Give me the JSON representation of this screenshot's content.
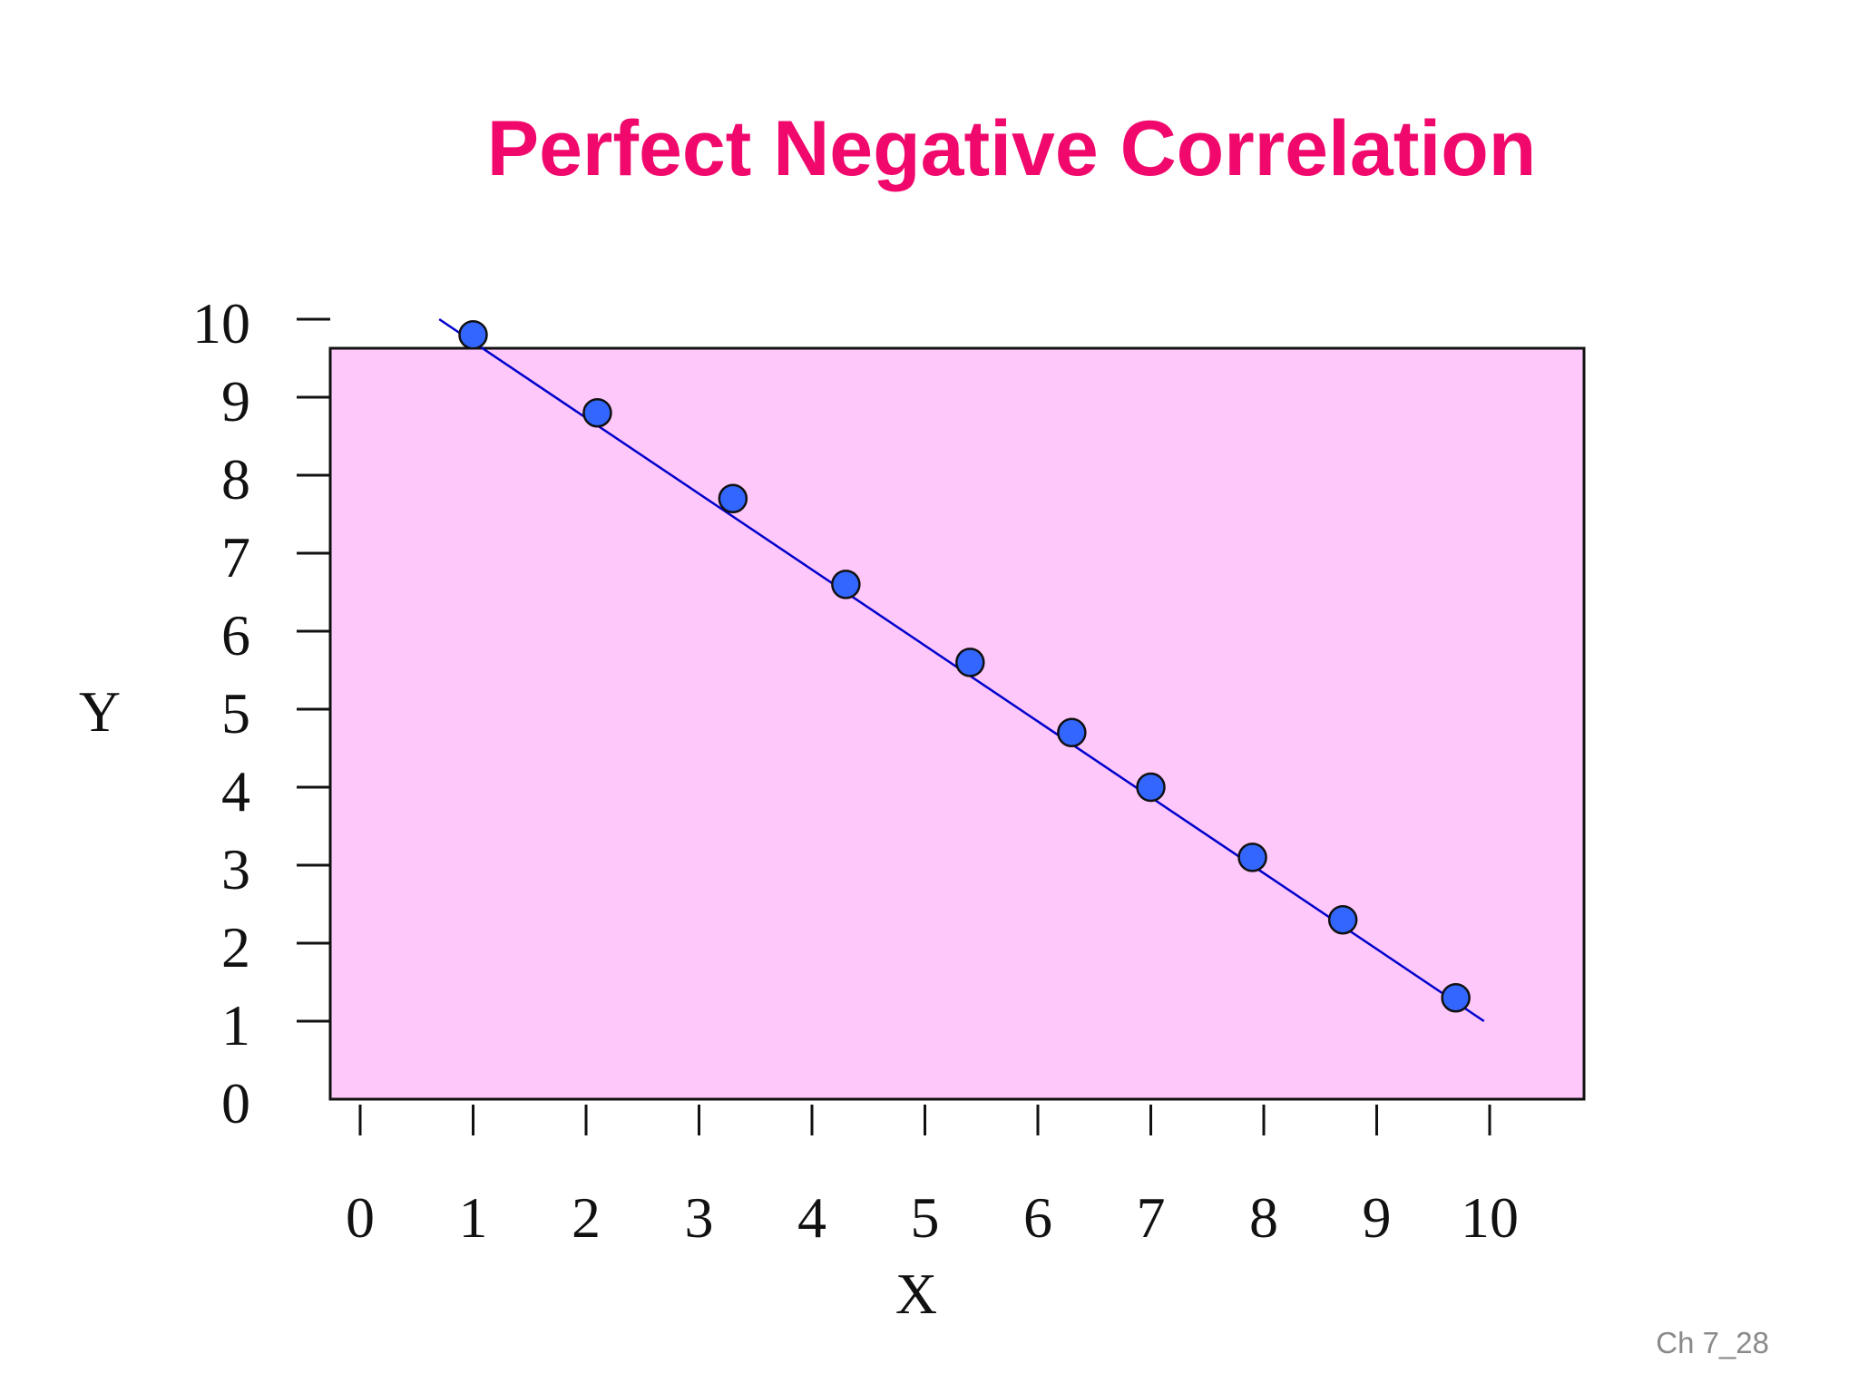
{
  "slide": {
    "title": "Perfect Negative Correlation",
    "slide_number": "Ch 7_28"
  },
  "colors": {
    "title": "#f0086c",
    "plot_background": "#ffc8fa",
    "line": "#0000cc",
    "marker_fill": "#3366ff",
    "marker_stroke": "#111111"
  },
  "chart_data": {
    "type": "scatter",
    "title": "Perfect Negative Correlation",
    "xlabel": "X",
    "ylabel": "Y",
    "xlim": [
      0,
      10
    ],
    "ylim": [
      0,
      10
    ],
    "x_ticks": [
      {
        "value": 0,
        "label": "0"
      },
      {
        "value": 1,
        "label": "1"
      },
      {
        "value": 2,
        "label": "2"
      },
      {
        "value": 3,
        "label": "3"
      },
      {
        "value": 4,
        "label": "4"
      },
      {
        "value": 5,
        "label": "5"
      },
      {
        "value": 6,
        "label": "6"
      },
      {
        "value": 7,
        "label": "7"
      },
      {
        "value": 8,
        "label": "8"
      },
      {
        "value": 9,
        "label": "9"
      },
      {
        "value": 10,
        "label": "10"
      }
    ],
    "y_ticks": [
      {
        "value": 0,
        "label": "0"
      },
      {
        "value": 1,
        "label": "1"
      },
      {
        "value": 2,
        "label": "2"
      },
      {
        "value": 3,
        "label": "3"
      },
      {
        "value": 4,
        "label": "4"
      },
      {
        "value": 5,
        "label": "5"
      },
      {
        "value": 6,
        "label": "6"
      },
      {
        "value": 7,
        "label": "7"
      },
      {
        "value": 8,
        "label": "8"
      },
      {
        "value": 9,
        "label": "9"
      },
      {
        "value": 10,
        "label": "10"
      }
    ],
    "points": [
      {
        "x": 1.0,
        "y": 9.8
      },
      {
        "x": 2.1,
        "y": 8.8
      },
      {
        "x": 3.3,
        "y": 7.7
      },
      {
        "x": 4.3,
        "y": 6.6
      },
      {
        "x": 5.4,
        "y": 5.6
      },
      {
        "x": 6.3,
        "y": 4.7
      },
      {
        "x": 7.0,
        "y": 4.0
      },
      {
        "x": 7.9,
        "y": 3.1
      },
      {
        "x": 8.7,
        "y": 2.3
      },
      {
        "x": 9.7,
        "y": 1.3
      }
    ],
    "trend_line": {
      "from": {
        "x": 0.7,
        "y": 10.0
      },
      "to": {
        "x": 9.95,
        "y": 1.0
      }
    },
    "grid": false,
    "legend": "none"
  }
}
